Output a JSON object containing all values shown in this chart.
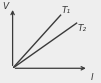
{
  "title": "",
  "xlabel": "I",
  "ylabel": "V",
  "line1_x": [
    0,
    0.75
  ],
  "line1_y": [
    0,
    1.0
  ],
  "line2_x": [
    0,
    1.0
  ],
  "line2_y": [
    0,
    0.85
  ],
  "line1_label": "T₁",
  "line2_label": "T₂",
  "line_color": "#3a3a3a",
  "background_color": "#eeeeee",
  "label_fontsize": 6.5,
  "axis_fontsize": 6.5,
  "xlim": [
    0,
    1.35
  ],
  "ylim": [
    0,
    1.25
  ]
}
